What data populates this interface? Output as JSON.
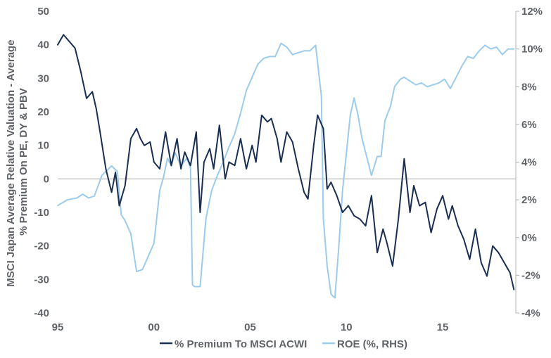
{
  "chart_data": {
    "type": "line",
    "title": "",
    "xlabel": "",
    "ylabel": "MSCI Japan Average Relative Valuation - Average % Premium On PE, DY & PBV",
    "ylabel_lines": [
      "MSCI Japan Average Relative Valuation - Average",
      "% Premium On PE, DY & PBV"
    ],
    "y2label": "",
    "x_ticks": [
      "95",
      "00",
      "05",
      "10",
      "15"
    ],
    "x_tick_years": [
      1995,
      2000,
      2005,
      2010,
      2015
    ],
    "xlim": [
      1995,
      2018.8
    ],
    "ylim": [
      -40,
      50
    ],
    "y_ticks": [
      "50",
      "40",
      "30",
      "20",
      "10",
      "0",
      "-10",
      "-20",
      "-30",
      "-40"
    ],
    "y2lim": [
      -4,
      12
    ],
    "y2_ticks": [
      "12%",
      "10%",
      "8%",
      "6%",
      "4%",
      "2%",
      "0%",
      "-2%",
      "-4%"
    ],
    "grid": false,
    "zero_line": true,
    "legend_position": "bottom",
    "series": [
      {
        "name": "% Premium To MSCI ACWI",
        "axis": "left",
        "color": "#1a2e52",
        "x": [
          1995.0,
          1995.3,
          1995.6,
          1995.9,
          1996.2,
          1996.5,
          1996.8,
          1997.0,
          1997.2,
          1997.5,
          1997.8,
          1998.0,
          1998.2,
          1998.5,
          1998.8,
          1999.1,
          1999.3,
          1999.5,
          1999.8,
          2000.0,
          2000.3,
          2000.6,
          2000.9,
          2001.2,
          2001.4,
          2001.6,
          2001.9,
          2002.2,
          2002.4,
          2002.6,
          2002.9,
          2003.1,
          2003.4,
          2003.7,
          2003.9,
          2004.2,
          2004.5,
          2004.8,
          2005.1,
          2005.3,
          2005.6,
          2005.9,
          2006.1,
          2006.4,
          2006.6,
          2006.9,
          2007.2,
          2007.5,
          2007.8,
          2008.0,
          2008.3,
          2008.5,
          2008.8,
          2009.0,
          2009.2,
          2009.5,
          2009.8,
          2010.1,
          2010.4,
          2010.7,
          2011.0,
          2011.3,
          2011.6,
          2011.9,
          2012.1,
          2012.4,
          2012.7,
          2013.0,
          2013.3,
          2013.5,
          2013.8,
          2014.1,
          2014.4,
          2014.7,
          2015.0,
          2015.3,
          2015.5,
          2015.8,
          2016.1,
          2016.4,
          2016.7,
          2017.0,
          2017.3,
          2017.6,
          2017.9,
          2018.2,
          2018.5,
          2018.7
        ],
        "values": [
          40,
          43,
          41,
          39,
          32,
          24,
          26,
          21,
          14,
          3,
          -4,
          2,
          -8,
          -2,
          12,
          15,
          12,
          10,
          11,
          5,
          3,
          14,
          4,
          12,
          3,
          8,
          4,
          14,
          -10,
          5,
          9,
          3,
          16,
          0,
          5,
          4,
          12,
          3,
          10,
          5,
          19,
          17,
          18,
          12,
          5,
          14,
          11,
          3,
          -4,
          -6,
          10,
          19,
          15,
          -3,
          -1,
          -5,
          -10,
          -8,
          -11,
          -12,
          -14,
          -5,
          -22,
          -15,
          -19,
          -26,
          -12,
          6,
          -10,
          -2,
          -8,
          -7,
          -16,
          -9,
          -5,
          -12,
          -8,
          -14,
          -18,
          -24,
          -15,
          -25,
          -29,
          -20,
          -22,
          -25,
          -28,
          -33
        ]
      },
      {
        "name": "ROE (%, RHS)",
        "axis": "right",
        "color": "#9ccbeb",
        "x": [
          1995.0,
          1995.5,
          1996.0,
          1996.3,
          1996.6,
          1996.9,
          1997.3,
          1997.8,
          1998.1,
          1998.3,
          1998.5,
          1998.8,
          1999.1,
          1999.4,
          1999.7,
          2000.0,
          2000.3,
          2000.5,
          2000.7,
          2000.9,
          2001.1,
          2001.4,
          2001.7,
          2001.9,
          2002.0,
          2002.1,
          2002.4,
          2002.7,
          2003.0,
          2003.3,
          2003.6,
          2003.9,
          2004.2,
          2004.5,
          2004.8,
          2005.1,
          2005.4,
          2005.7,
          2006.0,
          2006.3,
          2006.6,
          2006.9,
          2007.2,
          2007.5,
          2007.8,
          2008.1,
          2008.4,
          2008.7,
          2008.8,
          2009.0,
          2009.2,
          2009.4,
          2009.6,
          2009.8,
          2010.0,
          2010.2,
          2010.4,
          2010.6,
          2010.8,
          2011.0,
          2011.3,
          2011.6,
          2011.8,
          2012.0,
          2012.3,
          2012.5,
          2012.8,
          2013.0,
          2013.3,
          2013.6,
          2013.9,
          2014.2,
          2014.5,
          2014.8,
          2015.1,
          2015.4,
          2015.7,
          2016.0,
          2016.3,
          2016.6,
          2016.9,
          2017.2,
          2017.5,
          2017.8,
          2018.1,
          2018.4,
          2018.7
        ],
        "values": [
          1.7,
          2.0,
          2.1,
          2.3,
          2.1,
          2.2,
          3.3,
          3.8,
          3.5,
          1.2,
          0.9,
          0.2,
          -1.8,
          -1.7,
          -1.0,
          -0.3,
          2.5,
          3.2,
          4.2,
          3.8,
          4.5,
          3.8,
          4.2,
          3.7,
          -2.5,
          -2.6,
          -2.6,
          1.0,
          2.5,
          3.3,
          4.0,
          4.8,
          5.5,
          6.6,
          7.8,
          8.5,
          9.2,
          9.5,
          9.6,
          9.6,
          10.3,
          10.1,
          9.7,
          9.8,
          9.9,
          9.9,
          10.2,
          7.5,
          1.0,
          -1.5,
          -3.0,
          -3.2,
          -0.5,
          2.5,
          4.5,
          6.5,
          7.4,
          6.5,
          5.3,
          4.5,
          3.3,
          4.3,
          4.3,
          6.2,
          7.0,
          8.0,
          8.4,
          8.5,
          8.3,
          8.1,
          8.2,
          8.0,
          8.1,
          8.2,
          8.4,
          7.9,
          8.5,
          9.1,
          9.6,
          9.5,
          9.9,
          10.2,
          10.0,
          10.1,
          9.7,
          10.0,
          10.0
        ]
      }
    ]
  }
}
